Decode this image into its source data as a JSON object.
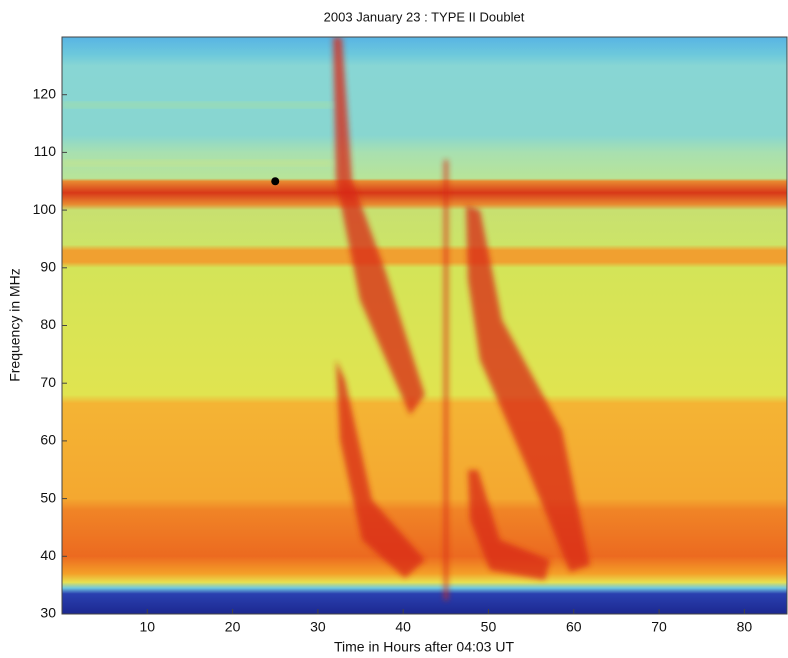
{
  "chart_data": {
    "type": "heatmap",
    "title": "2003 January 23 : TYPE II Doublet",
    "x_label": "Time in Hours after 04:03 UT",
    "y_label": "Frequency in MHz",
    "xlim": [
      0,
      85
    ],
    "xticks": [
      10,
      20,
      30,
      40,
      50,
      60,
      70,
      80
    ],
    "ylim": [
      30,
      130
    ],
    "yticks": [
      30,
      40,
      50,
      60,
      70,
      80,
      90,
      100,
      110,
      120
    ],
    "points": {
      "x": [
        25
      ],
      "y": [
        105
      ],
      "color": "#000000"
    }
  }
}
